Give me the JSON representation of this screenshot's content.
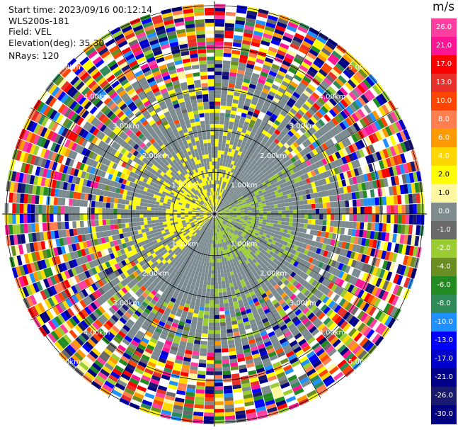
{
  "header": {
    "start_time": "Start time: 2023/09/16 00:12:14",
    "instrument": "WLS200s-181",
    "field": "Field: VEL",
    "elevation": "Elevation(deg): 35.30",
    "nrays": "NRays: 120"
  },
  "colorbar": {
    "title": "m/s",
    "ticks": [
      "26.0",
      "21.0",
      "17.0",
      "13.0",
      "10.0",
      "8.0",
      "6.0",
      "4.0",
      "2.0",
      "1.0",
      "0.0",
      "-1.0",
      "-2.0",
      "-4.0",
      "-6.0",
      "-8.0",
      "-10.0",
      "-13.0",
      "-17.0",
      "-21.0",
      "-26.0",
      "-30.0"
    ],
    "colors": [
      "#ff3fa0",
      "#ff1493",
      "#ff0000",
      "#e8302a",
      "#ff4500",
      "#ff7f50",
      "#ff9900",
      "#ffd700",
      "#ffff00",
      "#fff8a0",
      "#7f8c8d",
      "#696969",
      "#9acd32",
      "#6b8e23",
      "#228b22",
      "#2e8b57",
      "#1e90ff",
      "#0000ff",
      "#0000cd",
      "#00008b",
      "#191970",
      "#000080"
    ]
  },
  "chart_data": {
    "type": "ppi",
    "field": "VEL",
    "units": "m/s",
    "nrays": 120,
    "elevation_deg": 35.3,
    "range_rings": [
      "1.00km",
      "2.00km",
      "3.00km",
      "4.00km",
      "5.00km"
    ],
    "ring_values_km": [
      1,
      2,
      3,
      4,
      5
    ],
    "max_range_km": 5.1,
    "value_range": [
      -30.0,
      26.0
    ],
    "pattern": [
      {
        "region": "near range northwest",
        "velocity": 2.0
      },
      {
        "region": "near range southeast",
        "velocity": -2.0
      },
      {
        "region": "middle range",
        "velocity": 0.0
      },
      {
        "region": "far range",
        "velocity": "noise across full scale"
      }
    ]
  }
}
